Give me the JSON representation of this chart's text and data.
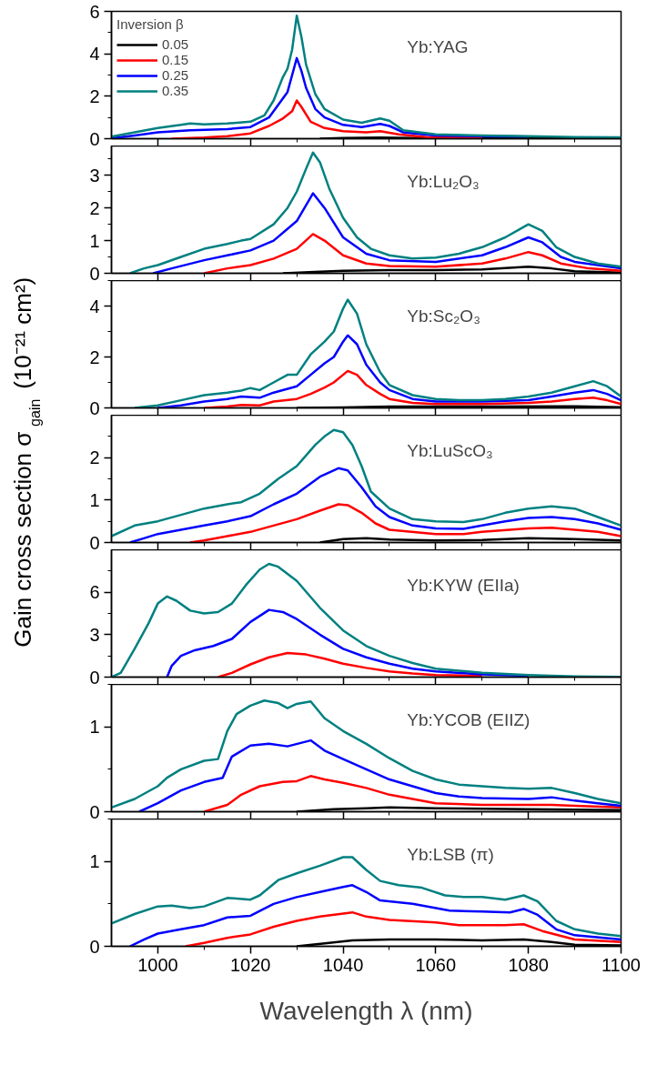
{
  "chart_data": [
    {
      "type": "line",
      "annotations": [
        "Yb:YAG"
      ],
      "legend": "top left",
      "legend_title": "Inversion β",
      "xlim": [
        990,
        1100
      ],
      "xticks": [
        1000,
        1020,
        1040,
        1060,
        1080,
        1100
      ],
      "ylim": [
        0,
        6
      ],
      "yticks": [
        0,
        2,
        4,
        6
      ],
      "tick_labels": "y",
      "series": [
        {
          "name": "0.05",
          "color": "#000000",
          "x": [
            1035,
            1040,
            1048,
            1055,
            1070,
            1090,
            1100
          ],
          "values": [
            0,
            0.03,
            0.05,
            0.03,
            0.03,
            0.02,
            0.02
          ]
        },
        {
          "name": "0.15",
          "color": "#ff0000",
          "x": [
            1003,
            1010,
            1015,
            1020,
            1024,
            1027,
            1029,
            1030,
            1031,
            1033,
            1036,
            1040,
            1045,
            1048,
            1052,
            1058,
            1070
          ],
          "values": [
            0,
            0.05,
            0.12,
            0.25,
            0.6,
            0.95,
            1.3,
            1.8,
            1.5,
            0.8,
            0.5,
            0.35,
            0.3,
            0.35,
            0.2,
            0.08,
            0.06
          ]
        },
        {
          "name": "0.25",
          "color": "#0000ff",
          "x": [
            990,
            995,
            1000,
            1007,
            1015,
            1020,
            1024,
            1027,
            1028,
            1029,
            1030,
            1031,
            1032,
            1034,
            1036,
            1040,
            1044,
            1048,
            1050,
            1053,
            1060,
            1070,
            1080
          ],
          "values": [
            0.02,
            0.15,
            0.3,
            0.4,
            0.45,
            0.55,
            1.0,
            1.9,
            2.2,
            3.0,
            3.8,
            3.2,
            2.4,
            1.4,
            1.0,
            0.65,
            0.55,
            0.7,
            0.6,
            0.3,
            0.15,
            0.12,
            0.1
          ]
        },
        {
          "name": "0.35",
          "color": "#008080",
          "x": [
            990,
            995,
            1000,
            1005,
            1007,
            1010,
            1015,
            1020,
            1023,
            1025,
            1027,
            1028,
            1029,
            1030,
            1031,
            1032,
            1034,
            1036,
            1040,
            1044,
            1048,
            1050,
            1053,
            1060,
            1070,
            1080,
            1090,
            1100
          ],
          "values": [
            0.1,
            0.3,
            0.5,
            0.65,
            0.72,
            0.68,
            0.72,
            0.8,
            1.1,
            1.8,
            2.9,
            3.3,
            4.2,
            5.8,
            4.8,
            3.5,
            2.1,
            1.4,
            0.9,
            0.75,
            0.95,
            0.85,
            0.4,
            0.2,
            0.15,
            0.12,
            0.08,
            0.06
          ]
        }
      ]
    },
    {
      "type": "line",
      "annotations": [
        "Yb:Lu₂O₃"
      ],
      "xlim": [
        990,
        1100
      ],
      "xticks": [
        1000,
        1020,
        1040,
        1060,
        1080,
        1100
      ],
      "ylim": [
        0,
        3.9
      ],
      "yticks": [
        0,
        1,
        2,
        3
      ],
      "tick_labels": "y",
      "series": [
        {
          "color": "#000000",
          "x": [
            1027,
            1035,
            1040,
            1050,
            1060,
            1070,
            1080,
            1085,
            1090,
            1100
          ],
          "values": [
            0,
            0.05,
            0.08,
            0.1,
            0.1,
            0.12,
            0.2,
            0.15,
            0.06,
            0.02
          ]
        },
        {
          "color": "#ff0000",
          "x": [
            1010,
            1015,
            1020,
            1025,
            1030,
            1033.5,
            1036,
            1040,
            1045,
            1050,
            1060,
            1070,
            1075,
            1080,
            1083,
            1087,
            1093,
            1100
          ],
          "values": [
            0,
            0.15,
            0.25,
            0.45,
            0.75,
            1.2,
            1.0,
            0.55,
            0.3,
            0.22,
            0.2,
            0.3,
            0.45,
            0.65,
            0.55,
            0.3,
            0.15,
            0.08
          ]
        },
        {
          "color": "#0000ff",
          "x": [
            999,
            1003,
            1010,
            1015,
            1020,
            1025,
            1030,
            1033.5,
            1036,
            1040,
            1045,
            1050,
            1060,
            1070,
            1075,
            1080,
            1083,
            1087,
            1090,
            1100
          ],
          "values": [
            0,
            0.15,
            0.4,
            0.55,
            0.7,
            1.0,
            1.6,
            2.45,
            2.0,
            1.1,
            0.6,
            0.4,
            0.35,
            0.55,
            0.8,
            1.1,
            0.95,
            0.5,
            0.35,
            0.15
          ]
        },
        {
          "color": "#008080",
          "x": [
            994,
            997,
            1000,
            1005,
            1010,
            1015,
            1018,
            1020,
            1025,
            1028,
            1030,
            1032,
            1033.5,
            1035,
            1037,
            1040,
            1043,
            1046,
            1050,
            1055,
            1060,
            1065,
            1070,
            1075,
            1080,
            1083,
            1086,
            1090,
            1095,
            1100
          ],
          "values": [
            0,
            0.15,
            0.25,
            0.5,
            0.75,
            0.9,
            1.0,
            1.05,
            1.5,
            2.0,
            2.5,
            3.2,
            3.7,
            3.4,
            2.6,
            1.7,
            1.1,
            0.75,
            0.55,
            0.45,
            0.48,
            0.6,
            0.8,
            1.1,
            1.5,
            1.3,
            0.8,
            0.5,
            0.3,
            0.2
          ]
        }
      ]
    },
    {
      "type": "line",
      "annotations": [
        "Yb:Sc₂O₃"
      ],
      "xlim": [
        990,
        1100
      ],
      "xticks": [
        1000,
        1020,
        1040,
        1060,
        1080,
        1100
      ],
      "ylim": [
        0,
        5
      ],
      "yticks": [
        0,
        2,
        4
      ],
      "tick_labels": "y",
      "series": [
        {
          "color": "#000000",
          "x": [
            1030,
            1040,
            1050,
            1070,
            1090,
            1100
          ],
          "values": [
            0,
            0.02,
            0.05,
            0.05,
            0.06,
            0.03
          ]
        },
        {
          "color": "#ff0000",
          "x": [
            1010,
            1015,
            1018,
            1022,
            1025,
            1030,
            1033,
            1036,
            1038,
            1041,
            1043,
            1045,
            1048,
            1050,
            1055,
            1060,
            1070,
            1080,
            1085,
            1090,
            1094,
            1097,
            1100
          ],
          "values": [
            0,
            0.05,
            0.12,
            0.1,
            0.25,
            0.35,
            0.55,
            0.8,
            1.0,
            1.45,
            1.3,
            0.9,
            0.55,
            0.35,
            0.2,
            0.15,
            0.15,
            0.2,
            0.25,
            0.35,
            0.4,
            0.3,
            0.15
          ]
        },
        {
          "color": "#0000ff",
          "x": [
            1000,
            1005,
            1010,
            1015,
            1018,
            1022,
            1025,
            1030,
            1033,
            1036,
            1038,
            1040,
            1041,
            1043,
            1045,
            1048,
            1050,
            1055,
            1060,
            1070,
            1080,
            1085,
            1090,
            1094,
            1097,
            1100
          ],
          "values": [
            0,
            0.1,
            0.25,
            0.35,
            0.45,
            0.4,
            0.6,
            0.85,
            1.3,
            1.75,
            2.0,
            2.6,
            2.85,
            2.5,
            1.7,
            1.0,
            0.7,
            0.35,
            0.25,
            0.25,
            0.3,
            0.45,
            0.6,
            0.7,
            0.55,
            0.3
          ]
        },
        {
          "color": "#008080",
          "x": [
            995,
            1000,
            1005,
            1010,
            1015,
            1018,
            1020,
            1022,
            1025,
            1028,
            1030,
            1033,
            1036,
            1038,
            1040,
            1041,
            1043,
            1045,
            1048,
            1050,
            1055,
            1060,
            1065,
            1070,
            1075,
            1080,
            1085,
            1090,
            1094,
            1097,
            1100
          ],
          "values": [
            0,
            0.1,
            0.3,
            0.5,
            0.6,
            0.68,
            0.78,
            0.7,
            1.0,
            1.3,
            1.3,
            2.1,
            2.6,
            3.0,
            3.9,
            4.25,
            3.7,
            2.5,
            1.4,
            0.9,
            0.5,
            0.35,
            0.3,
            0.3,
            0.35,
            0.45,
            0.6,
            0.85,
            1.05,
            0.85,
            0.45
          ]
        }
      ]
    },
    {
      "type": "line",
      "annotations": [
        "Yb:LuScO₃"
      ],
      "ylabel": "Gain cross section σ$_{gain}$ (10⁻²¹ cm²)",
      "xlim": [
        990,
        1100
      ],
      "xticks": [
        1000,
        1020,
        1040,
        1060,
        1080,
        1100
      ],
      "ylim": [
        0,
        3
      ],
      "yticks": [
        0,
        1,
        2
      ],
      "tick_labels": "y",
      "series": [
        {
          "color": "#000000",
          "x": [
            1035,
            1040,
            1045,
            1050,
            1060,
            1070,
            1080,
            1090,
            1100
          ],
          "values": [
            0,
            0.08,
            0.1,
            0.07,
            0.05,
            0.06,
            0.1,
            0.08,
            0.05
          ]
        },
        {
          "color": "#ff0000",
          "x": [
            1007,
            1010,
            1015,
            1020,
            1025,
            1030,
            1035,
            1039,
            1041,
            1044,
            1047,
            1050,
            1060,
            1066,
            1070,
            1080,
            1085,
            1090,
            1095,
            1100
          ],
          "values": [
            0,
            0.05,
            0.15,
            0.25,
            0.4,
            0.55,
            0.75,
            0.9,
            0.88,
            0.7,
            0.45,
            0.3,
            0.2,
            0.2,
            0.25,
            0.33,
            0.35,
            0.3,
            0.25,
            0.15
          ]
        },
        {
          "color": "#0000ff",
          "x": [
            994,
            997,
            1000,
            1005,
            1010,
            1015,
            1020,
            1025,
            1030,
            1035,
            1039,
            1041,
            1044,
            1047,
            1050,
            1055,
            1060,
            1066,
            1070,
            1075,
            1080,
            1085,
            1090,
            1095,
            1100
          ],
          "values": [
            0,
            0.1,
            0.2,
            0.3,
            0.4,
            0.5,
            0.62,
            0.9,
            1.15,
            1.55,
            1.75,
            1.7,
            1.3,
            0.85,
            0.6,
            0.4,
            0.33,
            0.32,
            0.4,
            0.5,
            0.58,
            0.6,
            0.55,
            0.45,
            0.3
          ]
        },
        {
          "color": "#008080",
          "x": [
            990,
            995,
            1000,
            1005,
            1010,
            1015,
            1018,
            1022,
            1026,
            1030,
            1034,
            1036,
            1038,
            1040,
            1042,
            1044,
            1046,
            1050,
            1055,
            1060,
            1066,
            1070,
            1075,
            1080,
            1085,
            1090,
            1095,
            1100
          ],
          "values": [
            0.15,
            0.4,
            0.5,
            0.65,
            0.8,
            0.9,
            0.95,
            1.15,
            1.5,
            1.8,
            2.3,
            2.5,
            2.65,
            2.6,
            2.3,
            1.8,
            1.2,
            0.8,
            0.55,
            0.5,
            0.48,
            0.55,
            0.7,
            0.8,
            0.85,
            0.8,
            0.6,
            0.4
          ]
        }
      ]
    },
    {
      "type": "line",
      "annotations": [
        "Yb:KYW (EIIa)"
      ],
      "xlim": [
        990,
        1100
      ],
      "xticks": [
        1000,
        1020,
        1040,
        1060,
        1080,
        1100
      ],
      "ylim": [
        0,
        9
      ],
      "yticks": [
        0,
        3,
        6
      ],
      "tick_labels": "y",
      "series": [
        {
          "color": "#ff0000",
          "x": [
            1013,
            1016,
            1020,
            1024,
            1028,
            1032,
            1036,
            1040,
            1045,
            1050,
            1055,
            1060,
            1070
          ],
          "values": [
            0,
            0.3,
            0.9,
            1.4,
            1.7,
            1.6,
            1.3,
            0.95,
            0.65,
            0.4,
            0.25,
            0.15,
            0.08
          ]
        },
        {
          "color": "#0000ff",
          "x": [
            1002,
            1003,
            1005,
            1008,
            1012,
            1016,
            1020,
            1024,
            1027,
            1030,
            1035,
            1040,
            1045,
            1050,
            1055,
            1060,
            1070,
            1080
          ],
          "values": [
            0,
            0.8,
            1.5,
            1.9,
            2.2,
            2.7,
            3.9,
            4.75,
            4.6,
            4.1,
            3.0,
            2.0,
            1.4,
            0.95,
            0.6,
            0.4,
            0.2,
            0.1
          ]
        },
        {
          "color": "#008080",
          "x": [
            990,
            992,
            995,
            998,
            1000,
            1002,
            1004,
            1007,
            1010,
            1013,
            1016,
            1019,
            1022,
            1024,
            1026,
            1030,
            1035,
            1040,
            1045,
            1050,
            1055,
            1060,
            1070,
            1080,
            1090,
            1100
          ],
          "values": [
            0,
            0.3,
            2.0,
            3.8,
            5.2,
            5.7,
            5.4,
            4.7,
            4.5,
            4.6,
            5.2,
            6.5,
            7.6,
            8.0,
            7.8,
            6.8,
            4.9,
            3.3,
            2.2,
            1.5,
            1.0,
            0.6,
            0.3,
            0.15,
            0.05,
            0.02
          ]
        }
      ]
    },
    {
      "type": "line",
      "annotations": [
        "Yb:YCOB (EIIZ)"
      ],
      "xlim": [
        990,
        1100
      ],
      "xticks": [
        1000,
        1020,
        1040,
        1060,
        1080,
        1100
      ],
      "ylim": [
        0,
        1.5
      ],
      "yticks": [
        0,
        1
      ],
      "tick_labels": "y",
      "series": [
        {
          "color": "#000000",
          "x": [
            1030,
            1038,
            1045,
            1050,
            1060,
            1080,
            1100
          ],
          "values": [
            0,
            0.03,
            0.04,
            0.05,
            0.04,
            0.03,
            0.02
          ]
        },
        {
          "color": "#ff0000",
          "x": [
            1010,
            1015,
            1018,
            1022,
            1027,
            1030,
            1033,
            1036,
            1040,
            1045,
            1050,
            1055,
            1060,
            1070,
            1080,
            1085,
            1090,
            1100
          ],
          "values": [
            0,
            0.08,
            0.2,
            0.3,
            0.35,
            0.36,
            0.42,
            0.38,
            0.34,
            0.28,
            0.2,
            0.15,
            0.1,
            0.08,
            0.08,
            0.08,
            0.07,
            0.05
          ]
        },
        {
          "color": "#0000ff",
          "x": [
            996,
            1000,
            1005,
            1010,
            1014,
            1016,
            1020,
            1024,
            1028,
            1033,
            1036,
            1040,
            1045,
            1050,
            1055,
            1060,
            1065,
            1070,
            1080,
            1085,
            1090,
            1095,
            1100
          ],
          "values": [
            0,
            0.1,
            0.25,
            0.35,
            0.4,
            0.65,
            0.78,
            0.8,
            0.77,
            0.84,
            0.72,
            0.62,
            0.5,
            0.38,
            0.3,
            0.22,
            0.18,
            0.16,
            0.15,
            0.17,
            0.13,
            0.1,
            0.07
          ]
        },
        {
          "color": "#008080",
          "x": [
            990,
            995,
            1000,
            1002,
            1005,
            1010,
            1013,
            1015,
            1017,
            1020,
            1023,
            1026,
            1028,
            1030,
            1033,
            1036,
            1040,
            1045,
            1050,
            1055,
            1060,
            1065,
            1070,
            1075,
            1080,
            1085,
            1090,
            1095,
            1100
          ],
          "values": [
            0.05,
            0.15,
            0.3,
            0.4,
            0.5,
            0.6,
            0.62,
            0.95,
            1.15,
            1.25,
            1.31,
            1.28,
            1.22,
            1.27,
            1.3,
            1.1,
            0.95,
            0.8,
            0.63,
            0.48,
            0.38,
            0.32,
            0.3,
            0.28,
            0.27,
            0.28,
            0.22,
            0.15,
            0.1
          ]
        }
      ]
    },
    {
      "type": "line",
      "annotations": [
        "Yb:LSB (π)"
      ],
      "xlabel": "Wavelength λ (nm)",
      "xlim": [
        990,
        1100
      ],
      "xticks": [
        1000,
        1020,
        1040,
        1060,
        1080,
        1100
      ],
      "ylim": [
        0,
        1.5
      ],
      "yticks": [
        0,
        1
      ],
      "series": [
        {
          "color": "#000000",
          "x": [
            1030,
            1037,
            1042,
            1050,
            1060,
            1070,
            1079,
            1085,
            1090,
            1100
          ],
          "values": [
            0,
            0.04,
            0.07,
            0.08,
            0.08,
            0.07,
            0.08,
            0.05,
            0.02,
            0.01
          ]
        },
        {
          "color": "#ff0000",
          "x": [
            1006,
            1010,
            1015,
            1020,
            1025,
            1030,
            1035,
            1042,
            1045,
            1050,
            1060,
            1065,
            1075,
            1079,
            1083,
            1090,
            1100
          ],
          "values": [
            0,
            0.04,
            0.1,
            0.14,
            0.23,
            0.3,
            0.35,
            0.4,
            0.35,
            0.31,
            0.28,
            0.25,
            0.25,
            0.26,
            0.18,
            0.08,
            0.05
          ]
        },
        {
          "color": "#0000ff",
          "x": [
            994,
            997,
            1000,
            1005,
            1010,
            1015,
            1020,
            1025,
            1030,
            1035,
            1040,
            1042,
            1045,
            1048,
            1055,
            1063,
            1070,
            1076,
            1079,
            1082,
            1086,
            1090,
            1100
          ],
          "values": [
            0,
            0.08,
            0.15,
            0.2,
            0.25,
            0.34,
            0.36,
            0.5,
            0.58,
            0.64,
            0.7,
            0.72,
            0.64,
            0.54,
            0.5,
            0.42,
            0.41,
            0.4,
            0.44,
            0.37,
            0.2,
            0.13,
            0.08
          ]
        },
        {
          "color": "#008080",
          "x": [
            990,
            995,
            1000,
            1003,
            1007,
            1010,
            1015,
            1020,
            1022,
            1026,
            1030,
            1035,
            1040,
            1042,
            1045,
            1048,
            1052,
            1057,
            1062,
            1066,
            1070,
            1075,
            1079,
            1082,
            1086,
            1090,
            1095,
            1100
          ],
          "values": [
            0.27,
            0.38,
            0.47,
            0.48,
            0.45,
            0.47,
            0.57,
            0.55,
            0.6,
            0.78,
            0.86,
            0.95,
            1.05,
            1.05,
            0.9,
            0.77,
            0.72,
            0.69,
            0.6,
            0.58,
            0.58,
            0.55,
            0.6,
            0.53,
            0.3,
            0.2,
            0.15,
            0.12
          ]
        }
      ]
    }
  ]
}
